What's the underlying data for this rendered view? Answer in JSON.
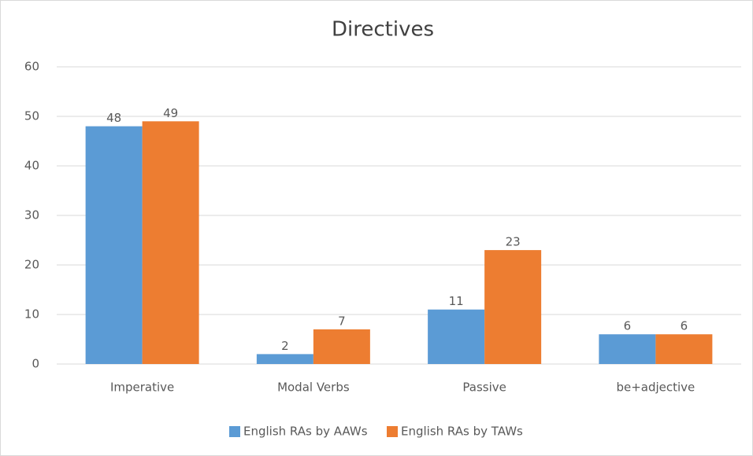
{
  "chart_data": {
    "type": "bar",
    "title": "Directives",
    "categories": [
      "Imperative",
      "Modal Verbs",
      "Passive",
      "be+adjective"
    ],
    "series": [
      {
        "name": "English RAs by AAWs",
        "color": "#5b9bd5",
        "values": [
          48,
          2,
          11,
          6
        ]
      },
      {
        "name": "English RAs by TAWs",
        "color": "#ed7d31",
        "values": [
          49,
          7,
          23,
          6
        ]
      }
    ],
    "ylim": [
      0,
      60
    ],
    "yticks": [
      0,
      10,
      20,
      30,
      40,
      50,
      60
    ],
    "grid": true,
    "legend": "bottom"
  }
}
